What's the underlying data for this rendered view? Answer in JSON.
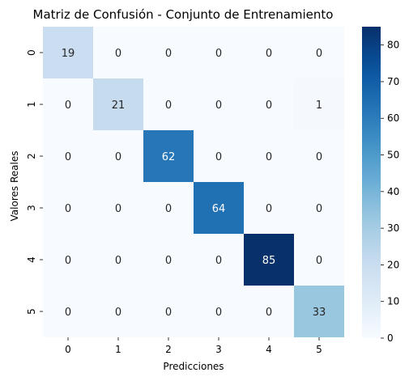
{
  "chart_data": {
    "type": "heatmap",
    "title": "Matriz de Confusión - Conjunto de Entrenamiento",
    "xlabel": "Predicciones",
    "ylabel": "Valores Reales",
    "x_categories": [
      "0",
      "1",
      "2",
      "3",
      "4",
      "5"
    ],
    "y_categories": [
      "0",
      "1",
      "2",
      "3",
      "4",
      "5"
    ],
    "values": [
      [
        19,
        0,
        0,
        0,
        0,
        0
      ],
      [
        0,
        21,
        0,
        0,
        0,
        1
      ],
      [
        0,
        0,
        62,
        0,
        0,
        0
      ],
      [
        0,
        0,
        0,
        64,
        0,
        0
      ],
      [
        0,
        0,
        0,
        0,
        85,
        0
      ],
      [
        0,
        0,
        0,
        0,
        0,
        33
      ]
    ],
    "colorbar": {
      "min": 0,
      "max": 85,
      "ticks": [
        "0",
        "10",
        "20",
        "30",
        "40",
        "50",
        "60",
        "70",
        "80"
      ]
    },
    "colormap": "Blues",
    "colors": {
      "low": "#f7fbff",
      "high": "#08306b"
    }
  }
}
